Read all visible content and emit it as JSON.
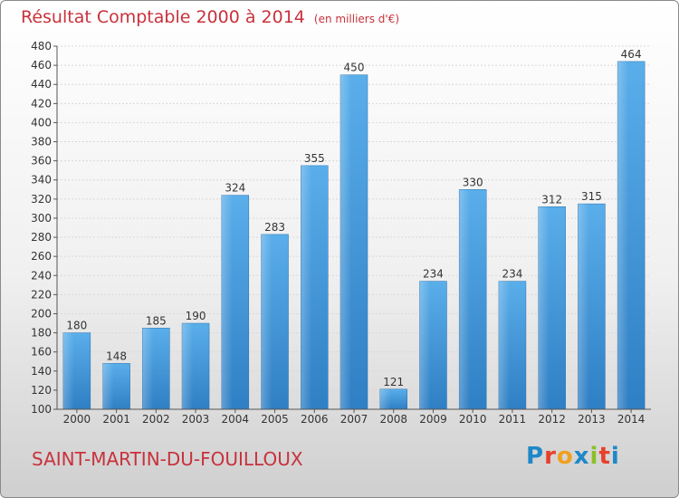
{
  "header": {
    "title": "Résultat Comptable 2000 à 2014",
    "unit": "(en milliers d'€)"
  },
  "footer": {
    "commune": "SAINT-MARTIN-DU-FOUILLOUX",
    "logo": [
      "P",
      "r",
      "o",
      "x",
      "i",
      "t",
      "i"
    ],
    "logo_colors": [
      "#1e88c8",
      "#e8402a",
      "#f0a020",
      "#1e88c8",
      "#8bbf2a",
      "#e8402a",
      "#1e88c8"
    ]
  },
  "chart_data": {
    "type": "bar",
    "title": "Résultat Comptable 2000 à 2014",
    "subtitle": "(en milliers d'€)",
    "xlabel": "",
    "ylabel": "",
    "categories": [
      "2000",
      "2001",
      "2002",
      "2003",
      "2004",
      "2005",
      "2006",
      "2007",
      "2008",
      "2009",
      "2010",
      "2011",
      "2012",
      "2013",
      "2014"
    ],
    "values": [
      180,
      148,
      185,
      190,
      324,
      283,
      355,
      450,
      121,
      234,
      330,
      234,
      312,
      315,
      464
    ],
    "ylim": [
      100,
      480
    ],
    "ytick_step": 20,
    "grid": true,
    "bar_color": "#4a9ee0"
  }
}
